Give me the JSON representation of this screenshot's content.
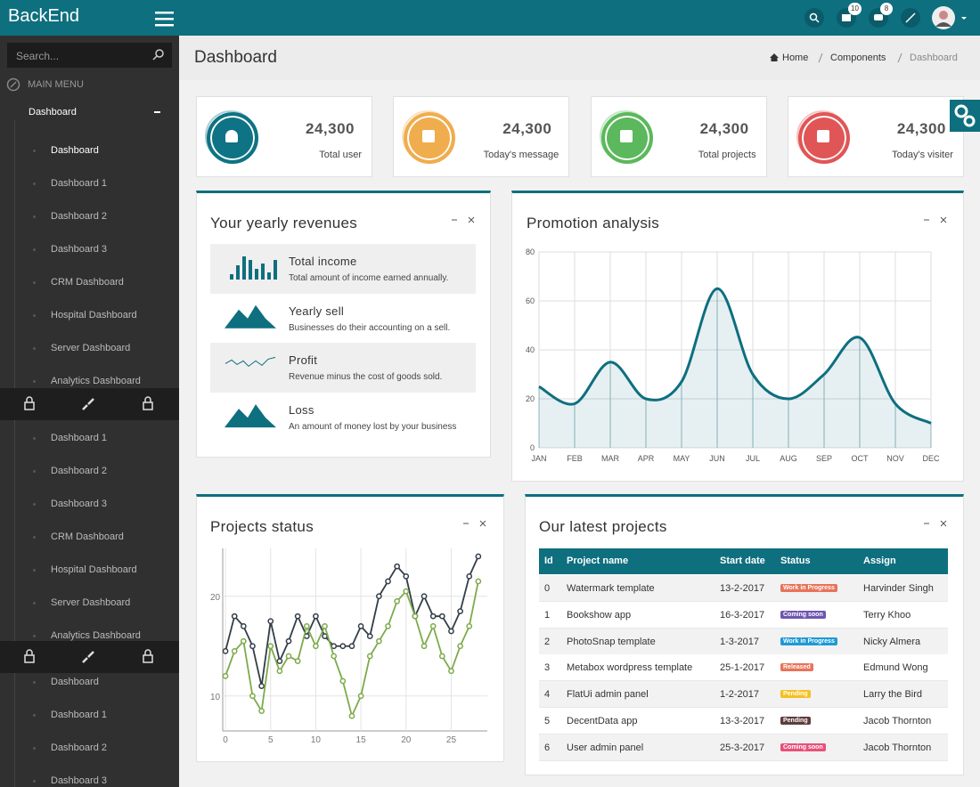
{
  "header": {
    "brand": "BackEnd",
    "notification_badges": [
      "10",
      "8"
    ]
  },
  "sidebar": {
    "search_placeholder": "Search...",
    "menu_label": "MAIN MENU",
    "group": "Dashboard",
    "items": [
      "Dashboard",
      "Dashboard 1",
      "Dashboard 2",
      "Dashboard 3",
      "CRM Dashboard",
      "Hospital Dashboard",
      "Server Dashboard",
      "Analytics Dashboard"
    ],
    "items_2": [
      "Dashboard 1",
      "Dashboard 2",
      "Dashboard 3",
      "CRM Dashboard",
      "Hospital Dashboard",
      "Server Dashboard",
      "Analytics Dashboard"
    ],
    "items_3": [
      "Dashboard",
      "Dashboard 1",
      "Dashboard 2",
      "Dashboard 3"
    ]
  },
  "page": {
    "title": "Dashboard",
    "breadcrumb": [
      "Home",
      "Components",
      "Dashboard"
    ]
  },
  "stats": [
    {
      "value": "24,300",
      "label": "Total user",
      "color": "#0e7384"
    },
    {
      "value": "24,300",
      "label": "Today's message",
      "color": "#f0ad4e"
    },
    {
      "value": "24,300",
      "label": "Total projects",
      "color": "#5cb85c"
    },
    {
      "value": "24,300",
      "label": "Today's visiter",
      "color": "#e05656"
    }
  ],
  "revenues": {
    "title": "Your yearly revenues",
    "items": [
      {
        "title": "Total income",
        "description": "Total amount of income earned annually."
      },
      {
        "title": "Yearly sell",
        "description": "Businesses do their accounting on a sell."
      },
      {
        "title": "Profit",
        "description": "Revenue minus the cost of goods sold."
      },
      {
        "title": "Loss",
        "description": "An amount of money lost by your business"
      }
    ]
  },
  "promotion": {
    "title": "Promotion analysis",
    "chart": {
      "type": "line",
      "categories": [
        "JAN",
        "FEB",
        "MAR",
        "APR",
        "MAY",
        "JUN",
        "JUL",
        "AUG",
        "SEP",
        "OCT",
        "NOV",
        "DEC"
      ],
      "values": [
        25,
        18,
        35,
        20,
        27,
        65,
        30,
        20,
        30,
        45,
        18,
        10
      ],
      "color": "#0e6f7f",
      "ylim": [
        0,
        80
      ],
      "yticks": [
        0,
        20,
        40,
        60,
        80
      ],
      "grid": true
    }
  },
  "projects_status": {
    "title": "Projects status",
    "chart": {
      "type": "line",
      "x": [
        0,
        1,
        2,
        3,
        4,
        5,
        6,
        7,
        8,
        9,
        10,
        11,
        12,
        13,
        14,
        15,
        16,
        17,
        18,
        19,
        20,
        21,
        22,
        23,
        24,
        25,
        26,
        27,
        28
      ],
      "series": [
        {
          "color": "#333d48",
          "values": [
            14.5,
            18,
            17,
            15,
            11,
            17.5,
            13.5,
            15.5,
            18,
            16,
            18,
            16,
            15,
            15,
            15,
            17,
            16,
            20,
            21.5,
            23,
            22,
            18,
            20,
            18,
            18,
            16.5,
            18.5,
            22,
            24
          ]
        },
        {
          "color": "#7cab4a",
          "values": [
            12,
            14.5,
            15.5,
            10,
            8.5,
            15,
            12.5,
            14,
            13.5,
            17,
            15,
            17,
            14,
            11.5,
            8,
            10,
            14,
            15.5,
            17,
            19.5,
            20.5,
            18,
            15,
            17,
            14,
            12.5,
            15,
            17,
            21.5
          ]
        }
      ],
      "xlim": [
        -0.5,
        29
      ],
      "xticks": [
        0,
        5,
        10,
        15,
        20,
        25
      ],
      "ylim": [
        6.5,
        24.8
      ],
      "yticks": [
        10,
        20
      ],
      "grid": true
    }
  },
  "latest_projects": {
    "title": "Our latest projects",
    "columns": [
      "Id",
      "Project name",
      "Start date",
      "Status",
      "Assign"
    ],
    "rows": [
      [
        "0",
        "Watermark template",
        "13-2-2017",
        "Work in Progress",
        "Harvinder Singh"
      ],
      [
        "1",
        "Bookshow app",
        "16-3-2017",
        "Coming soon",
        "Terry Khoo"
      ],
      [
        "2",
        "PhotoSnap template",
        "1-3-2017",
        "Work in Progress",
        "Nicky Almera"
      ],
      [
        "3",
        "Metabox wordpress template",
        "25-1-2017",
        "Released",
        "Edmund Wong"
      ],
      [
        "4",
        "FlatUi admin panel",
        "1-2-2017",
        "Pending",
        "Larry the Bird"
      ],
      [
        "5",
        "DecentData app",
        "13-3-2017",
        "Pending",
        "Jacob Thornton"
      ],
      [
        "6",
        "User admin panel",
        "25-3-2017",
        "Coming soon",
        "Jacob Thornton"
      ]
    ],
    "status_colors": [
      "#e8735a",
      "#6f56b0",
      "#1e9ad6",
      "#e8735a",
      "#f5c021",
      "#5e3c3c",
      "#e8507a"
    ]
  }
}
